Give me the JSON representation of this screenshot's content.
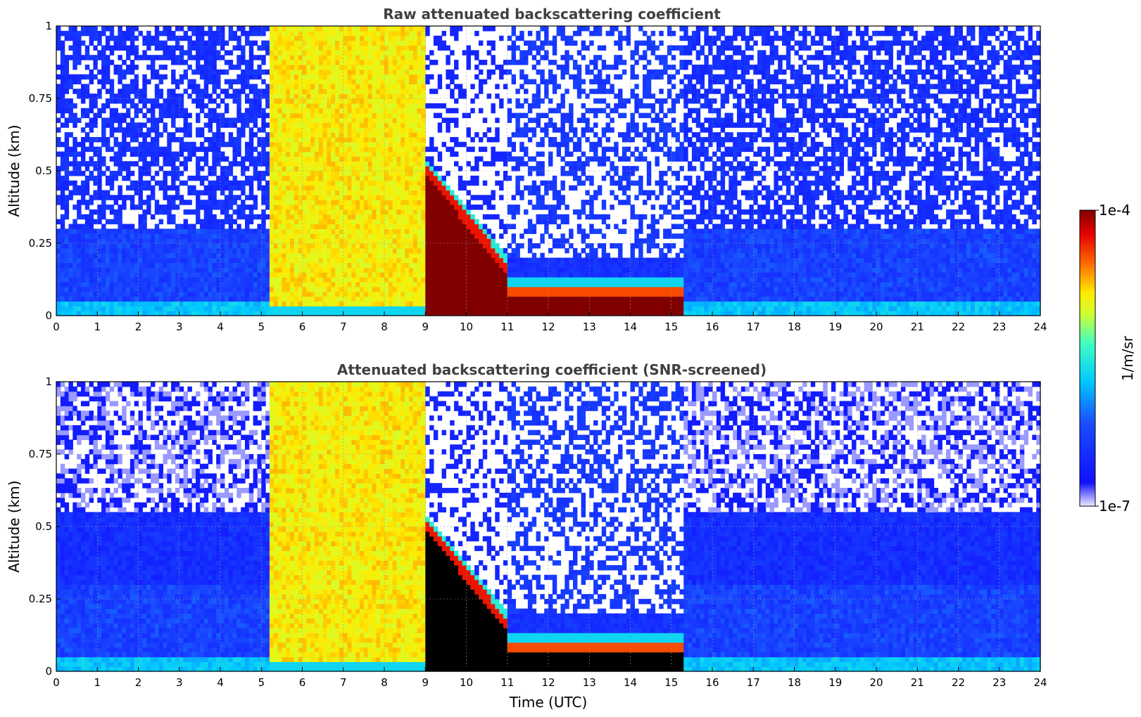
{
  "chart_data": [
    {
      "type": "heatmap",
      "title": "Raw attenuated backscattering coefficient",
      "xlabel": "",
      "ylabel": "Altitude (km)",
      "xlim": [
        0,
        24
      ],
      "ylim": [
        0,
        1
      ],
      "x_ticks": [
        "0",
        "1",
        "2",
        "3",
        "4",
        "5",
        "6",
        "7",
        "8",
        "9",
        "10",
        "11",
        "12",
        "13",
        "14",
        "15",
        "16",
        "17",
        "18",
        "19",
        "20",
        "21",
        "22",
        "23",
        "24"
      ],
      "y_ticks": [
        "0",
        "0.25",
        "0.5",
        "0.75",
        "1"
      ],
      "y_tick_values": [
        0,
        0.25,
        0.5,
        0.75,
        1
      ],
      "grid": true,
      "segments": [
        {
          "t0": 0.0,
          "t1": 5.2,
          "regime": "clear-night",
          "noise_above_km": 0.3
        },
        {
          "t0": 5.2,
          "t1": 9.0,
          "regime": "strong-aerosol",
          "approx_log10_value": -5.4
        },
        {
          "t0": 9.0,
          "t1": 11.0,
          "regime": "descending-layer",
          "layer_top_km": [
            0.55,
            0.2
          ]
        },
        {
          "t0": 11.0,
          "t1": 15.3,
          "regime": "low-saturated-layer",
          "layer_top_km": 0.09
        },
        {
          "t0": 15.3,
          "t1": 24.0,
          "regime": "clear-night",
          "noise_above_km": 0.3
        }
      ]
    },
    {
      "type": "heatmap",
      "title": "Attenuated backscattering coefficient (SNR-screened)",
      "xlabel": "Time (UTC)",
      "ylabel": "Altitude (km)",
      "xlim": [
        0,
        24
      ],
      "ylim": [
        0,
        1
      ],
      "x_ticks": [
        "0",
        "1",
        "2",
        "3",
        "4",
        "5",
        "6",
        "7",
        "8",
        "9",
        "10",
        "11",
        "12",
        "13",
        "14",
        "15",
        "16",
        "17",
        "18",
        "19",
        "20",
        "21",
        "22",
        "23",
        "24"
      ],
      "y_ticks": [
        "0",
        "0.25",
        "0.5",
        "0.75",
        "1"
      ],
      "y_tick_values": [
        0,
        0.25,
        0.5,
        0.75,
        1
      ],
      "grid": true,
      "segments": [
        {
          "t0": 0.0,
          "t1": 5.2,
          "regime": "screened-night",
          "screened_above_km": 0.55
        },
        {
          "t0": 5.2,
          "t1": 9.0,
          "regime": "strong-aerosol",
          "approx_log10_value": -5.4
        },
        {
          "t0": 9.0,
          "t1": 11.0,
          "regime": "descending-layer",
          "layer_top_km": [
            0.55,
            0.2
          ]
        },
        {
          "t0": 11.0,
          "t1": 15.3,
          "regime": "low-saturated-layer",
          "layer_top_km": 0.09
        },
        {
          "t0": 15.3,
          "t1": 24.0,
          "regime": "screened-night",
          "screened_above_km": 0.55
        }
      ]
    }
  ],
  "colorbar": {
    "label": "1/m/sr",
    "max_label": "1e-4",
    "min_label": "1e-7",
    "scale": "log",
    "range": [
      1e-07,
      0.0001
    ],
    "colormap": [
      "#f0f0ff",
      "#0000ff",
      "#00ffff",
      "#ffff00",
      "#ff0000",
      "#800000"
    ]
  }
}
